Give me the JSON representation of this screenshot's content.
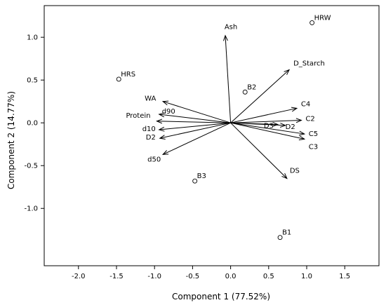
{
  "chart_data": {
    "type": "scatter",
    "title": "",
    "xlabel": "Component 1 (77.52%)",
    "ylabel": "Component 2 (14.77%)",
    "xlim": [
      -2.45,
      1.95
    ],
    "ylim": [
      -1.67,
      1.37
    ],
    "xticks": [
      -2.0,
      -1.5,
      -1.0,
      -0.5,
      0.0,
      0.5,
      1.0,
      1.5
    ],
    "yticks": [
      -1.0,
      -0.5,
      0.0,
      0.5,
      1.0
    ],
    "xtick_labels": [
      "-2.0",
      "-1.5",
      "-1.0",
      "-0.5",
      "0.0",
      "0.5",
      "1.0",
      "1.5"
    ],
    "ytick_labels": [
      "-1.0",
      "-0.5",
      "0.0",
      "0.5",
      "1.0"
    ],
    "grid": false,
    "observations": [
      {
        "name": "HRW",
        "x": 1.07,
        "y": 1.17
      },
      {
        "name": "HRS",
        "x": -1.47,
        "y": 0.51
      },
      {
        "name": "B2",
        "x": 0.19,
        "y": 0.36
      },
      {
        "name": "B3",
        "x": -0.47,
        "y": -0.68
      },
      {
        "name": "B1",
        "x": 0.65,
        "y": -1.34
      }
    ],
    "loadings": [
      {
        "name": "Ash",
        "x": -0.07,
        "y": 1.02
      },
      {
        "name": "D_Starch",
        "x": 0.77,
        "y": 0.62
      },
      {
        "name": "C4",
        "x": 0.87,
        "y": 0.17
      },
      {
        "name": "C2",
        "x": 0.93,
        "y": 0.03
      },
      {
        "name": "C5",
        "x": 0.97,
        "y": -0.13
      },
      {
        "name": "D3",
        "x": 0.62,
        "y": -0.02
      },
      {
        "name": "D2",
        "x": 0.72,
        "y": -0.03
      },
      {
        "name": "C3",
        "x": 0.97,
        "y": -0.19
      },
      {
        "name": "DS",
        "x": 0.74,
        "y": -0.65
      },
      {
        "name": "WA",
        "x": -0.89,
        "y": 0.25
      },
      {
        "name": "d90",
        "x": -0.94,
        "y": 0.1
      },
      {
        "name": "Protein",
        "x": -0.97,
        "y": 0.02
      },
      {
        "name": "d10",
        "x": -0.94,
        "y": -0.08
      },
      {
        "name": "D2",
        "x": -0.93,
        "y": -0.18
      },
      {
        "name": "d50",
        "x": -0.89,
        "y": -0.37
      }
    ]
  }
}
